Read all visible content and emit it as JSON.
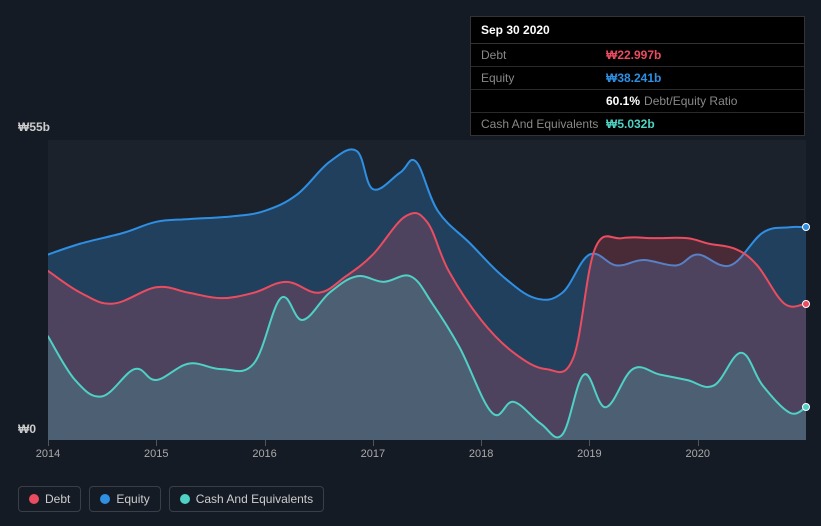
{
  "tooltip": {
    "date": "Sep 30 2020",
    "rows": {
      "debt": {
        "label": "Debt",
        "value": "₩22.997b"
      },
      "equity": {
        "label": "Equity",
        "value": "₩38.241b"
      },
      "ratio": {
        "value": "60.1%",
        "label": "Debt/Equity Ratio"
      },
      "cash": {
        "label": "Cash And Equivalents",
        "value": "₩5.032b"
      }
    }
  },
  "chart": {
    "type": "area",
    "background_color": "#1b222c",
    "page_background": "#151b24",
    "y_max_label": "₩55b",
    "y_min_label": "₩0",
    "ylim": [
      0,
      55
    ],
    "xlim": [
      2014,
      2021
    ],
    "x_ticks": [
      2014,
      2015,
      2016,
      2017,
      2018,
      2019,
      2020
    ],
    "series": {
      "equity": {
        "color": "#2f8fe3",
        "fill_opacity": 0.28,
        "stroke_width": 2,
        "points": [
          [
            2014.0,
            34
          ],
          [
            2014.3,
            36
          ],
          [
            2014.7,
            38
          ],
          [
            2015.0,
            40
          ],
          [
            2015.3,
            40.5
          ],
          [
            2015.7,
            41
          ],
          [
            2016.0,
            42
          ],
          [
            2016.3,
            45
          ],
          [
            2016.6,
            51
          ],
          [
            2016.85,
            53
          ],
          [
            2017.0,
            46
          ],
          [
            2017.25,
            49
          ],
          [
            2017.4,
            51
          ],
          [
            2017.6,
            42
          ],
          [
            2017.9,
            36
          ],
          [
            2018.2,
            30
          ],
          [
            2018.5,
            26
          ],
          [
            2018.75,
            27
          ],
          [
            2019.0,
            34
          ],
          [
            2019.25,
            32
          ],
          [
            2019.5,
            33
          ],
          [
            2019.8,
            32
          ],
          [
            2020.0,
            34
          ],
          [
            2020.3,
            32
          ],
          [
            2020.6,
            38
          ],
          [
            2020.85,
            39
          ],
          [
            2021.0,
            39
          ]
        ]
      },
      "debt": {
        "color": "#eb4c60",
        "fill_opacity": 0.22,
        "stroke_width": 2,
        "points": [
          [
            2014.0,
            31
          ],
          [
            2014.3,
            27
          ],
          [
            2014.6,
            25
          ],
          [
            2015.0,
            28
          ],
          [
            2015.3,
            27
          ],
          [
            2015.6,
            26
          ],
          [
            2015.9,
            27
          ],
          [
            2016.2,
            29
          ],
          [
            2016.5,
            27
          ],
          [
            2016.75,
            30
          ],
          [
            2017.0,
            34
          ],
          [
            2017.3,
            41
          ],
          [
            2017.5,
            40
          ],
          [
            2017.7,
            31
          ],
          [
            2018.0,
            22
          ],
          [
            2018.3,
            16
          ],
          [
            2018.6,
            13
          ],
          [
            2018.85,
            15
          ],
          [
            2019.05,
            35
          ],
          [
            2019.3,
            37
          ],
          [
            2019.6,
            37
          ],
          [
            2019.9,
            37
          ],
          [
            2020.1,
            36
          ],
          [
            2020.35,
            35
          ],
          [
            2020.55,
            32
          ],
          [
            2020.8,
            25
          ],
          [
            2021.0,
            25
          ]
        ]
      },
      "cash": {
        "color": "#4fd1c5",
        "fill_opacity": 0.2,
        "stroke_width": 2,
        "points": [
          [
            2014.0,
            19
          ],
          [
            2014.25,
            11
          ],
          [
            2014.5,
            8
          ],
          [
            2014.8,
            13
          ],
          [
            2015.0,
            11
          ],
          [
            2015.3,
            14
          ],
          [
            2015.6,
            13
          ],
          [
            2015.9,
            14
          ],
          [
            2016.15,
            26
          ],
          [
            2016.35,
            22
          ],
          [
            2016.6,
            27
          ],
          [
            2016.85,
            30
          ],
          [
            2017.1,
            29
          ],
          [
            2017.35,
            30
          ],
          [
            2017.55,
            25
          ],
          [
            2017.8,
            17
          ],
          [
            2018.1,
            5
          ],
          [
            2018.3,
            7
          ],
          [
            2018.55,
            3
          ],
          [
            2018.75,
            1
          ],
          [
            2018.95,
            12
          ],
          [
            2019.15,
            6
          ],
          [
            2019.4,
            13
          ],
          [
            2019.65,
            12
          ],
          [
            2019.9,
            11
          ],
          [
            2020.15,
            10
          ],
          [
            2020.4,
            16
          ],
          [
            2020.6,
            10
          ],
          [
            2020.85,
            5
          ],
          [
            2021.0,
            6
          ]
        ]
      }
    },
    "markers": [
      {
        "series": "equity",
        "x": 2021.0,
        "y": 39
      },
      {
        "series": "debt",
        "x": 2021.0,
        "y": 25
      },
      {
        "series": "cash",
        "x": 2021.0,
        "y": 6
      }
    ]
  },
  "legend": {
    "debt": {
      "label": "Debt",
      "color": "#eb4c60"
    },
    "equity": {
      "label": "Equity",
      "color": "#2f8fe3"
    },
    "cash": {
      "label": "Cash And Equivalents",
      "color": "#4fd1c5"
    }
  }
}
